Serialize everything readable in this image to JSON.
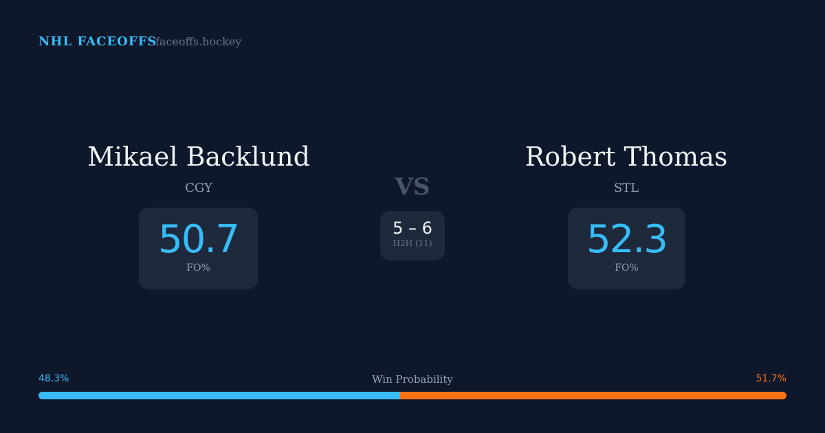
{
  "header": {
    "brand": "NHL FACEOFFS",
    "site": "faceoffs.hockey"
  },
  "left": {
    "name": "Mikael Backlund",
    "team": "CGY",
    "fo_pct": "50.7",
    "fo_label": "FO%"
  },
  "right": {
    "name": "Robert Thomas",
    "team": "STL",
    "fo_pct": "52.3",
    "fo_label": "FO%"
  },
  "vs": "VS",
  "h2h": {
    "score": "5 – 6",
    "label": "H2H (11)"
  },
  "win_probability": {
    "label": "Win Probability",
    "left": "48.3%",
    "right": "51.7%",
    "left_value": 48.3,
    "right_value": 51.7
  },
  "colors": {
    "background": "#0f172a",
    "card": "#1e293b",
    "left_accent": "#38bdf8",
    "right_accent": "#f97316"
  }
}
